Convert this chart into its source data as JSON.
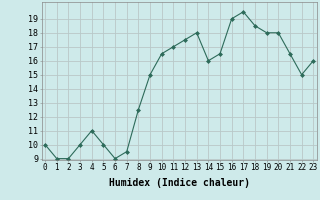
{
  "x": [
    0,
    1,
    2,
    3,
    4,
    5,
    6,
    7,
    8,
    9,
    10,
    11,
    12,
    13,
    14,
    15,
    16,
    17,
    18,
    19,
    20,
    21,
    22,
    23
  ],
  "y": [
    10,
    9,
    9,
    10,
    11,
    10,
    9,
    9.5,
    12.5,
    15,
    16.5,
    17,
    17.5,
    18,
    16,
    16.5,
    19,
    19.5,
    18.5,
    18,
    18,
    16.5,
    15,
    16
  ],
  "xlabel": "Humidex (Indice chaleur)",
  "ylim_min": 9,
  "ylim_max": 20,
  "xlim_min": 0,
  "xlim_max": 23,
  "yticks": [
    9,
    10,
    11,
    12,
    13,
    14,
    15,
    16,
    17,
    18,
    19
  ],
  "xtick_labels": [
    "0",
    "1",
    "2",
    "3",
    "4",
    "5",
    "6",
    "7",
    "8",
    "9",
    "10",
    "11",
    "12",
    "13",
    "14",
    "15",
    "16",
    "17",
    "18",
    "19",
    "20",
    "21",
    "22",
    "23"
  ],
  "line_color": "#2d6b5a",
  "marker_color": "#2d6b5a",
  "bg_color": "#ceeaea",
  "grid_major_color": "#b0cccc",
  "grid_minor_color": "#e8b8b8",
  "tick_fontsize": 6,
  "xlabel_fontsize": 7
}
